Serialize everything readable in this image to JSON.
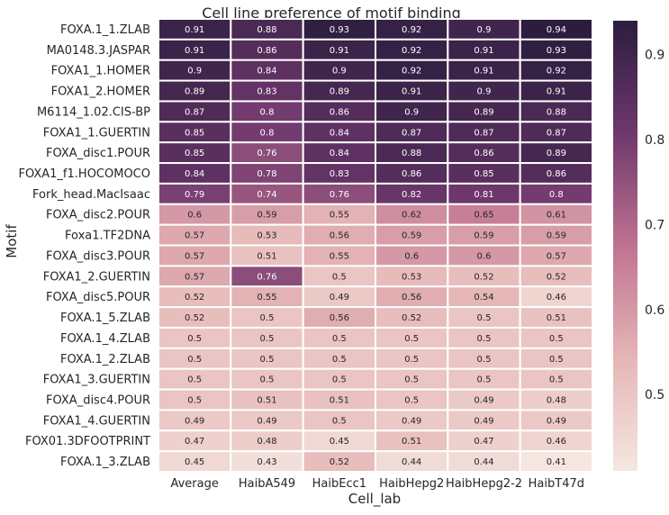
{
  "chart_data": {
    "type": "heatmap",
    "title": "Cell line preference of motif binding",
    "xlabel": "Cell_lab",
    "ylabel": "Motif",
    "columns": [
      "Average",
      "HaibA549",
      "HaibEcc1",
      "HaibHepg2",
      "HaibHepg2-2",
      "HaibT47d"
    ],
    "rows": [
      {
        "label": "FOXA.1_1.ZLAB",
        "values": [
          0.91,
          0.88,
          0.93,
          0.92,
          0.9,
          0.94
        ]
      },
      {
        "label": "MA0148.3.JASPAR",
        "values": [
          0.91,
          0.86,
          0.91,
          0.92,
          0.91,
          0.93
        ]
      },
      {
        "label": "FOXA1_1.HOMER",
        "values": [
          0.9,
          0.84,
          0.9,
          0.92,
          0.91,
          0.92
        ]
      },
      {
        "label": "FOXA1_2.HOMER",
        "values": [
          0.89,
          0.83,
          0.89,
          0.91,
          0.9,
          0.91
        ]
      },
      {
        "label": "M6114_1.02.CIS-BP",
        "values": [
          0.87,
          0.8,
          0.86,
          0.9,
          0.89,
          0.88
        ]
      },
      {
        "label": "FOXA1_1.GUERTIN",
        "values": [
          0.85,
          0.8,
          0.84,
          0.87,
          0.87,
          0.87
        ]
      },
      {
        "label": "FOXA_disc1.POUR",
        "values": [
          0.85,
          0.76,
          0.84,
          0.88,
          0.86,
          0.89
        ]
      },
      {
        "label": "FOXA1_f1.HOCOMOCO",
        "values": [
          0.84,
          0.78,
          0.83,
          0.86,
          0.85,
          0.86
        ]
      },
      {
        "label": "Fork_head.MacIsaac",
        "values": [
          0.79,
          0.74,
          0.76,
          0.82,
          0.81,
          0.8
        ]
      },
      {
        "label": "FOXA_disc2.POUR",
        "values": [
          0.6,
          0.59,
          0.55,
          0.62,
          0.65,
          0.61
        ]
      },
      {
        "label": "Foxa1.TF2DNA",
        "values": [
          0.57,
          0.53,
          0.56,
          0.59,
          0.59,
          0.59
        ]
      },
      {
        "label": "FOXA_disc3.POUR",
        "values": [
          0.57,
          0.51,
          0.55,
          0.6,
          0.6,
          0.57
        ]
      },
      {
        "label": "FOXA1_2.GUERTIN",
        "values": [
          0.57,
          0.76,
          0.5,
          0.53,
          0.52,
          0.52
        ]
      },
      {
        "label": "FOXA_disc5.POUR",
        "values": [
          0.52,
          0.55,
          0.49,
          0.56,
          0.54,
          0.46
        ]
      },
      {
        "label": "FOXA.1_5.ZLAB",
        "values": [
          0.52,
          0.5,
          0.56,
          0.52,
          0.5,
          0.51
        ]
      },
      {
        "label": "FOXA.1_4.ZLAB",
        "values": [
          0.5,
          0.5,
          0.5,
          0.5,
          0.5,
          0.5
        ]
      },
      {
        "label": "FOXA.1_2.ZLAB",
        "values": [
          0.5,
          0.5,
          0.5,
          0.5,
          0.5,
          0.5
        ]
      },
      {
        "label": "FOXA1_3.GUERTIN",
        "values": [
          0.5,
          0.5,
          0.5,
          0.5,
          0.5,
          0.5
        ]
      },
      {
        "label": "FOXA_disc4.POUR",
        "values": [
          0.5,
          0.51,
          0.51,
          0.5,
          0.49,
          0.48
        ]
      },
      {
        "label": "FOXA1_4.GUERTIN",
        "values": [
          0.49,
          0.49,
          0.5,
          0.49,
          0.49,
          0.49
        ]
      },
      {
        "label": "FOX01.3DFOOTPRINT",
        "values": [
          0.47,
          0.48,
          0.45,
          0.51,
          0.47,
          0.46
        ]
      },
      {
        "label": "FOXA.1_3.ZLAB",
        "values": [
          0.45,
          0.43,
          0.52,
          0.44,
          0.44,
          0.41
        ]
      }
    ],
    "colorbar": {
      "range": [
        0.41,
        0.94
      ],
      "ticks": [
        "0.5",
        "0.6",
        "0.7",
        "0.8",
        "0.9"
      ],
      "color_low": "#f5e6e0",
      "color_mid": "#c07290",
      "color_high": "#2c1d3f"
    },
    "grid": false,
    "annotations": true
  }
}
